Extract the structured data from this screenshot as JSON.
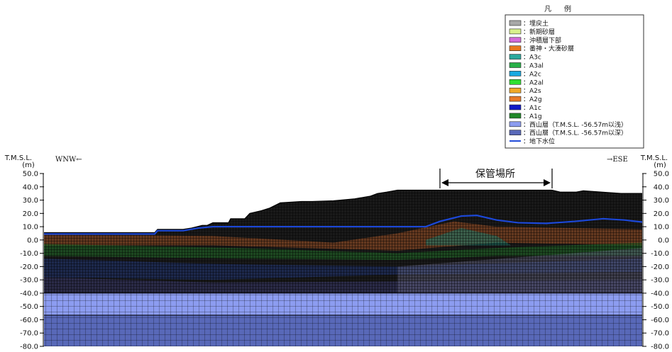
{
  "legend": {
    "title": "凡　例",
    "items": [
      {
        "label": "：埋戻土",
        "color": "#a8a8a8"
      },
      {
        "label": "：新期砂層",
        "color": "#d8f08c"
      },
      {
        "label": "：沖積層下部",
        "color": "#d36bd8"
      },
      {
        "label": "：番神・大湊砂層",
        "color": "#e8781e"
      },
      {
        "label": "：A3c",
        "color": "#2aa89c"
      },
      {
        "label": "：A3al",
        "color": "#28b048"
      },
      {
        "label": "：A2c",
        "color": "#18a8e0"
      },
      {
        "label": "：A2al",
        "color": "#30e030"
      },
      {
        "label": "：A2s",
        "color": "#f0a828"
      },
      {
        "label": "：A2g",
        "color": "#e87828"
      },
      {
        "label": "：A1c",
        "color": "#1018c8"
      },
      {
        "label": "：A1g",
        "color": "#208828"
      },
      {
        "label": "：西山層（T.M.S.L. -56.57m以浅）",
        "color": "#8c9cf0"
      },
      {
        "label": "：西山層（T.M.S.L. -56.57m以深）",
        "color": "#5868b8"
      },
      {
        "label": "：地下水位",
        "color": "#1c48d8",
        "type": "line"
      }
    ]
  },
  "axis": {
    "unit_top": "T.M.S.L.",
    "unit_bottom": "(m)",
    "ticks": [
      "50.0",
      "40.0",
      "30.0",
      "20.0",
      "10.0",
      "0.0",
      "-10.0",
      "-20.0",
      "-30.0",
      "-40.0",
      "-50.0",
      "-60.0",
      "-70.0",
      "-80.0"
    ],
    "tick_values": [
      50,
      40,
      30,
      20,
      10,
      0,
      -10,
      -20,
      -30,
      -40,
      -50,
      -60,
      -70,
      -80
    ]
  },
  "directions": {
    "left": "WNW←",
    "right": "→ESE"
  },
  "annotation": {
    "label": "保管場所"
  },
  "colors": {
    "mesh_line": "#000000",
    "nishiyama_shallow": "#8c9cf0",
    "nishiyama_deep": "#5868b8",
    "groundwater": "#1c48d8",
    "fill": "#1a1a1a",
    "layer_orange": "#c06028",
    "layer_green": "#207028",
    "layer_teal": "#1a8070",
    "layer_blue": "#203880"
  }
}
